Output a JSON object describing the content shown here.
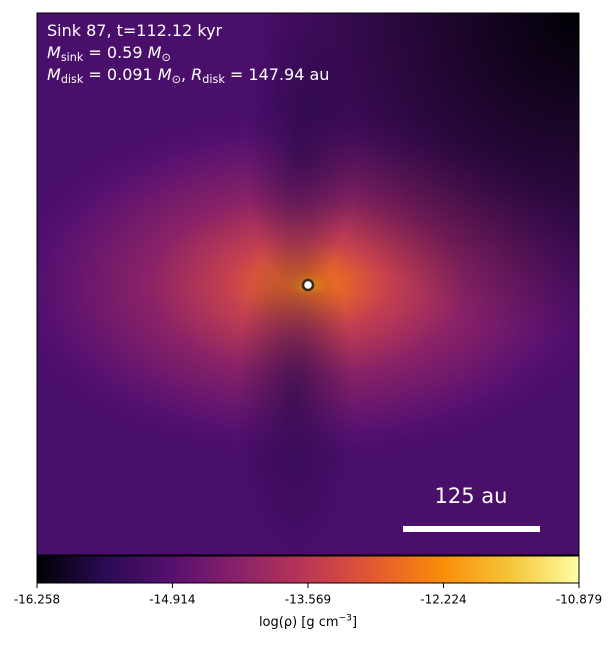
{
  "chart_data": {
    "type": "heatmap",
    "annotations": [
      [
        {
          "text": "Sink 87, t=112.12 kyr"
        }
      ],
      [
        {
          "text": "M"
        },
        {
          "sub": "sink"
        },
        {
          "text": " = 0.59 "
        },
        {
          "text": "M"
        },
        {
          "sub": "⊙"
        }
      ],
      [
        {
          "text": "M"
        },
        {
          "sub": "disk"
        },
        {
          "text": " = 0.091 "
        },
        {
          "text": "M"
        },
        {
          "sub": "⊙"
        },
        {
          "text": ", "
        },
        {
          "text": "R"
        },
        {
          "sub": "disk"
        },
        {
          "text": " = 147.94 au"
        }
      ]
    ],
    "scale_bar_label": "125 au",
    "colormap": "inferno",
    "clim": [
      -16.258,
      -10.879
    ],
    "cticks": [
      -16.258,
      -14.914,
      -13.569,
      -12.224,
      -10.879
    ],
    "colorbar_label": [
      {
        "text": "log(ρ) [g cm"
      },
      {
        "sup": "−3"
      },
      {
        "text": "]"
      }
    ]
  }
}
